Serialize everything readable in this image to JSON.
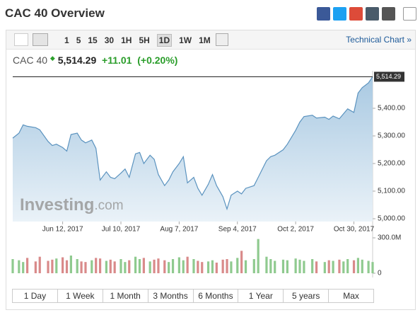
{
  "header": {
    "title": "CAC 40 Overview"
  },
  "toolbar": {
    "intervals": [
      "1",
      "5",
      "15",
      "30",
      "1H",
      "5H",
      "1D",
      "1W",
      "1M"
    ],
    "active_index": 6,
    "link": "Technical Chart »"
  },
  "quote": {
    "name": "CAC 40",
    "price": "5,514.29",
    "change": "+11.01",
    "change_pct": "(+0.20%)"
  },
  "chart": {
    "type": "area",
    "color": "#5b93bf",
    "x": [
      "2017-05-19",
      "2017-05-22",
      "2017-05-24",
      "2017-05-26",
      "2017-05-30",
      "2017-06-01",
      "2017-06-05",
      "2017-06-07",
      "2017-06-09",
      "2017-06-12",
      "2017-06-14",
      "2017-06-16",
      "2017-06-19",
      "2017-06-21",
      "2017-06-23",
      "2017-06-26",
      "2017-06-28",
      "2017-06-30",
      "2017-07-03",
      "2017-07-05",
      "2017-07-07",
      "2017-07-10",
      "2017-07-12",
      "2017-07-14",
      "2017-07-17",
      "2017-07-19",
      "2017-07-21",
      "2017-07-24",
      "2017-07-26",
      "2017-07-28",
      "2017-07-31",
      "2017-08-02",
      "2017-08-04",
      "2017-08-07",
      "2017-08-09",
      "2017-08-11",
      "2017-08-14",
      "2017-08-16",
      "2017-08-18",
      "2017-08-21",
      "2017-08-23",
      "2017-08-25",
      "2017-08-28",
      "2017-08-30",
      "2017-09-01",
      "2017-09-04",
      "2017-09-06",
      "2017-09-08",
      "2017-09-12",
      "2017-09-14",
      "2017-09-18",
      "2017-09-20",
      "2017-09-22",
      "2017-09-26",
      "2017-09-28",
      "2017-10-02",
      "2017-10-04",
      "2017-10-06",
      "2017-10-10",
      "2017-10-12",
      "2017-10-16",
      "2017-10-18",
      "2017-10-20",
      "2017-10-23",
      "2017-10-25",
      "2017-10-27",
      "2017-10-30",
      "2017-11-01",
      "2017-11-03",
      "2017-11-06",
      "2017-11-08"
    ],
    "values": [
      5292,
      5310,
      5340,
      5335,
      5330,
      5322,
      5280,
      5265,
      5270,
      5258,
      5245,
      5305,
      5310,
      5285,
      5275,
      5285,
      5255,
      5140,
      5170,
      5150,
      5145,
      5165,
      5180,
      5150,
      5235,
      5240,
      5200,
      5230,
      5215,
      5160,
      5120,
      5140,
      5170,
      5200,
      5225,
      5130,
      5150,
      5110,
      5085,
      5125,
      5160,
      5120,
      5080,
      5035,
      5085,
      5100,
      5090,
      5110,
      5120,
      5150,
      5210,
      5225,
      5230,
      5250,
      5270,
      5320,
      5350,
      5370,
      5375,
      5365,
      5368,
      5360,
      5372,
      5362,
      5380,
      5398,
      5385,
      5455,
      5475,
      5492,
      5514.29
    ],
    "xlim": [
      "2017-05-19",
      "2017-11-08"
    ],
    "xticks": [
      {
        "value": "2017-06-12",
        "label": "Jun 12, 2017"
      },
      {
        "value": "2017-07-10",
        "label": "Jul 10, 2017"
      },
      {
        "value": "2017-08-07",
        "label": "Aug 7, 2017"
      },
      {
        "value": "2017-09-04",
        "label": "Sep 4, 2017"
      },
      {
        "value": "2017-10-02",
        "label": "Oct 2, 2017"
      },
      {
        "value": "2017-10-30",
        "label": "Oct 30, 2017"
      }
    ],
    "ylim": [
      4990,
      5530
    ],
    "yticks": [
      {
        "value": 5000,
        "label": "5,000.00"
      },
      {
        "value": 5100,
        "label": "5,100.00"
      },
      {
        "value": 5200,
        "label": "5,200.00"
      },
      {
        "value": 5300,
        "label": "5,300.00"
      },
      {
        "value": 5400,
        "label": "5,400.00"
      }
    ],
    "watermark": {
      "brand": "Investing",
      "suffix": ".com"
    },
    "volume": {
      "up_color": "#8fca8f",
      "down_color": "#d98a8a",
      "values": [
        120,
        110,
        95,
        130,
        100,
        140,
        105,
        115,
        125,
        135,
        110,
        150,
        120,
        100,
        95,
        110,
        130,
        125,
        105,
        115,
        100,
        120,
        95,
        110,
        140,
        120,
        130,
        100,
        115,
        125,
        110,
        95,
        120,
        135,
        110,
        140,
        120,
        105,
        95,
        100,
        110,
        90,
        115,
        120,
        100,
        130,
        190,
        110,
        120,
        290,
        140,
        120,
        105,
        115,
        110,
        125,
        115,
        105,
        120,
        100,
        95,
        110,
        105,
        115,
        100,
        120,
        110,
        130,
        115,
        105,
        95
      ],
      "ylim": [
        0,
        300
      ],
      "yticks": [
        0,
        {
          "value": 300,
          "label": "300.0M"
        }
      ]
    }
  },
  "ranges": [
    "1 Day",
    "1 Week",
    "1 Month",
    "3 Months",
    "6 Months",
    "1 Year",
    "5 years",
    "Max"
  ]
}
